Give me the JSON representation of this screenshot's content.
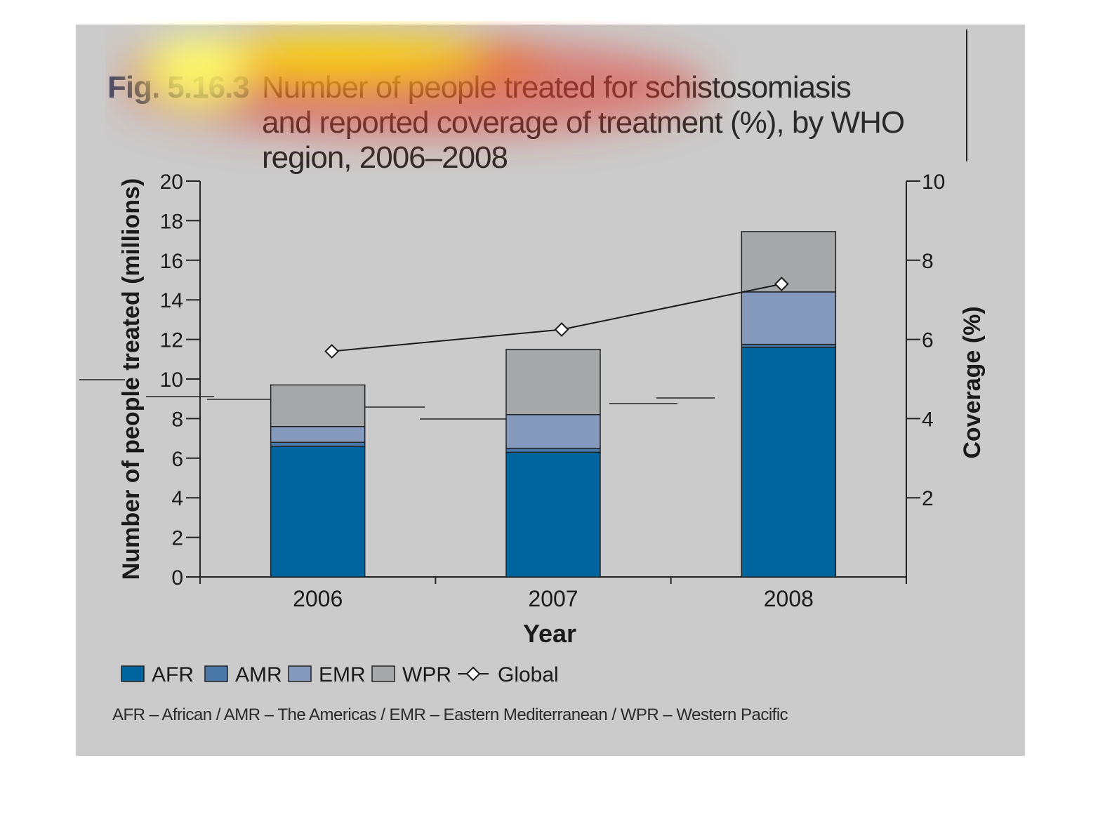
{
  "figure": {
    "label": "Fig. 5.16.3",
    "title": "Number of people treated for schistosomiasis and reported coverage of treatment (%), by WHO region, 2006–2008",
    "footnote": "AFR – African / AMR – The Americas / EMR – Eastern Mediterranean / WPR – Western Pacific"
  },
  "chart_data": {
    "type": "bar",
    "stacked": true,
    "categories": [
      "2006",
      "2007",
      "2008"
    ],
    "xlabel": "Year",
    "ylabel": "Number of people treated (millions)",
    "y2label": "Coverage (%)",
    "ylim": [
      0,
      20
    ],
    "y2lim": [
      0,
      10
    ],
    "yticks": [
      "0",
      "2",
      "4",
      "6",
      "8",
      "10",
      "12",
      "14",
      "16",
      "18",
      "20"
    ],
    "y2ticks": [
      "2",
      "4",
      "6",
      "8",
      "10"
    ],
    "series": [
      {
        "name": "AFR",
        "values": [
          6.6,
          6.3,
          11.6
        ],
        "color": "#00659f"
      },
      {
        "name": "AMR",
        "values": [
          0.2,
          0.2,
          0.15
        ],
        "color": "#4a78a8"
      },
      {
        "name": "EMR",
        "values": [
          0.8,
          1.7,
          2.65
        ],
        "color": "#8499bc"
      },
      {
        "name": "WPR",
        "values": [
          2.1,
          3.3,
          3.05
        ],
        "color": "#a6a7a9"
      }
    ],
    "line_series": {
      "name": "Global",
      "axis": "right",
      "values": [
        5.7,
        6.25,
        7.4
      ]
    },
    "legend": [
      "AFR",
      "AMR",
      "EMR",
      "WPR",
      "Global"
    ],
    "legend_position": "bottom"
  }
}
